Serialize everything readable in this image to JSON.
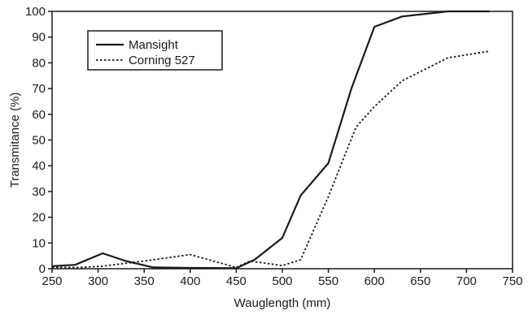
{
  "chart_data": {
    "type": "line",
    "title": "",
    "xlabel": "Wauglength (mm)",
    "ylabel": "Transmitance (%)",
    "xlim": [
      250,
      750
    ],
    "ylim": [
      0,
      100
    ],
    "xticks": [
      250,
      300,
      350,
      400,
      450,
      500,
      550,
      600,
      650,
      700,
      750
    ],
    "yticks": [
      0,
      10,
      20,
      30,
      40,
      50,
      60,
      70,
      80,
      90,
      100
    ],
    "grid": false,
    "legend_position": "top-left",
    "series": [
      {
        "name": "Mansight",
        "style": "solid",
        "color": "#1a1a1a",
        "x": [
          250,
          275,
          305,
          330,
          360,
          400,
          450,
          470,
          500,
          520,
          550,
          575,
          600,
          630,
          680,
          725
        ],
        "y": [
          1,
          1.5,
          6,
          3,
          0.5,
          0.3,
          0.2,
          3.5,
          12,
          28.5,
          41,
          70,
          94,
          98,
          100,
          100
        ]
      },
      {
        "name": "Corning 527",
        "style": "dotted",
        "color": "#1a1a1a",
        "x": [
          250,
          280,
          305,
          350,
          400,
          450,
          465,
          500,
          520,
          550,
          580,
          600,
          630,
          680,
          725
        ],
        "y": [
          0.5,
          0.5,
          1,
          3,
          5.5,
          0.5,
          3,
          1.2,
          3.5,
          28,
          55,
          63,
          73,
          82,
          84.5
        ]
      }
    ]
  }
}
